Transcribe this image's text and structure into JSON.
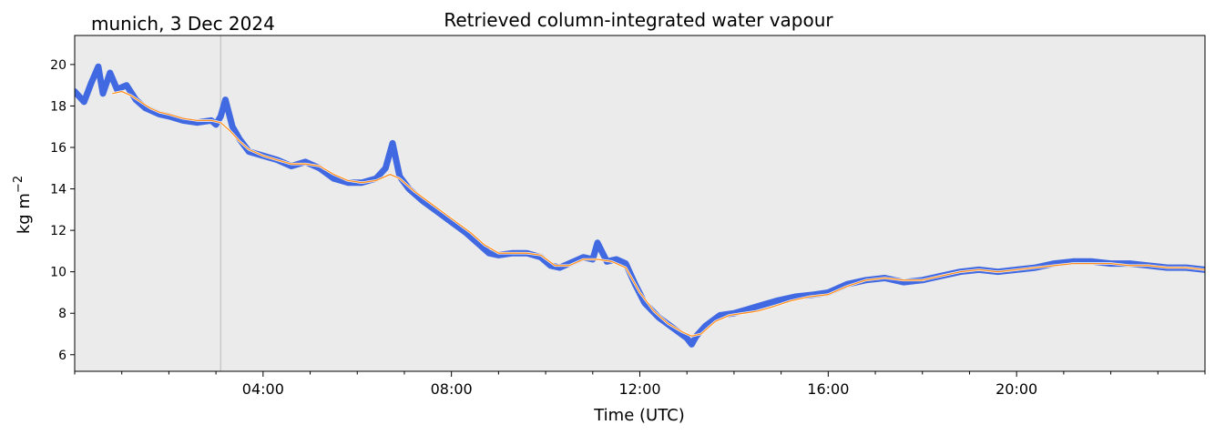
{
  "chart_data": {
    "type": "line",
    "title": "Retrieved column-integrated water vapour",
    "location_label": "munich, 3 Dec 2024",
    "xlabel": "Time (UTC)",
    "ylabel_base": "kg m",
    "ylabel_exponent": "−2",
    "x_unit": "hours UTC",
    "xlim": [
      0.0,
      24.0
    ],
    "ylim": [
      5.2,
      21.4
    ],
    "x_tick_values": [
      4,
      8,
      12,
      16,
      20
    ],
    "x_tick_labels": [
      "04:00",
      "08:00",
      "12:00",
      "16:00",
      "20:00"
    ],
    "y_tick_values": [
      6,
      8,
      10,
      12,
      14,
      16,
      18,
      20
    ],
    "y_tick_labels": [
      "6",
      "8",
      "10",
      "12",
      "14",
      "16",
      "18",
      "20"
    ],
    "grid": false,
    "legend": "none",
    "background_color": "#ebebeb",
    "vertical_marker_x": 3.1,
    "vertical_marker_color": "#c8c8c8",
    "series": [
      {
        "role": "raw",
        "color": "#4169e1",
        "x": [
          0.0,
          0.2,
          0.35,
          0.5,
          0.6,
          0.75,
          0.9,
          1.1,
          1.3,
          1.5,
          1.8,
          2.0,
          2.3,
          2.6,
          2.9,
          3.0,
          3.1,
          3.2,
          3.35,
          3.5,
          3.7,
          4.0,
          4.3,
          4.6,
          4.9,
          5.2,
          5.5,
          5.8,
          6.1,
          6.4,
          6.6,
          6.75,
          6.9,
          7.1,
          7.4,
          7.7,
          8.0,
          8.3,
          8.6,
          8.8,
          9.0,
          9.3,
          9.6,
          9.9,
          10.1,
          10.3,
          10.5,
          10.8,
          11.0,
          11.1,
          11.3,
          11.5,
          11.7,
          11.9,
          12.1,
          12.4,
          12.7,
          13.0,
          13.1,
          13.2,
          13.4,
          13.7,
          14.0,
          14.3,
          14.6,
          14.9,
          15.3,
          15.7,
          16.0,
          16.4,
          16.8,
          17.2,
          17.6,
          18.0,
          18.4,
          18.8,
          19.2,
          19.6,
          20.0,
          20.4,
          20.8,
          21.2,
          21.6,
          22.0,
          22.4,
          22.8,
          23.2,
          23.6,
          24.0
        ],
        "y": [
          18.7,
          18.2,
          19.1,
          19.9,
          18.6,
          19.6,
          18.8,
          19.0,
          18.3,
          17.9,
          17.6,
          17.5,
          17.3,
          17.2,
          17.3,
          17.1,
          17.5,
          18.3,
          17.0,
          16.4,
          15.8,
          15.6,
          15.4,
          15.1,
          15.3,
          15.0,
          14.5,
          14.3,
          14.3,
          14.5,
          15.0,
          16.2,
          14.6,
          14.0,
          13.4,
          12.9,
          12.4,
          11.9,
          11.3,
          10.9,
          10.8,
          10.9,
          10.9,
          10.7,
          10.3,
          10.2,
          10.4,
          10.7,
          10.6,
          11.4,
          10.5,
          10.6,
          10.4,
          9.4,
          8.5,
          7.8,
          7.3,
          6.8,
          6.5,
          6.9,
          7.4,
          7.9,
          8.0,
          8.2,
          8.4,
          8.6,
          8.8,
          8.9,
          9.0,
          9.4,
          9.6,
          9.7,
          9.5,
          9.6,
          9.8,
          10.0,
          10.1,
          10.0,
          10.1,
          10.2,
          10.4,
          10.5,
          10.5,
          10.4,
          10.4,
          10.3,
          10.2,
          10.2,
          10.1
        ]
      },
      {
        "role": "smoothed",
        "color": "#ff8c1a",
        "x": [
          0.8,
          1.0,
          1.2,
          1.4,
          1.6,
          1.8,
          2.0,
          2.3,
          2.6,
          2.9,
          3.1,
          3.3,
          3.5,
          3.7,
          4.0,
          4.3,
          4.6,
          4.9,
          5.2,
          5.5,
          5.8,
          6.1,
          6.4,
          6.7,
          6.9,
          7.2,
          7.5,
          7.8,
          8.1,
          8.4,
          8.7,
          9.0,
          9.3,
          9.6,
          9.9,
          10.2,
          10.5,
          10.8,
          11.1,
          11.4,
          11.7,
          12.0,
          12.3,
          12.6,
          12.9,
          13.1,
          13.3,
          13.6,
          13.9,
          14.2,
          14.5,
          14.8,
          15.2,
          15.6,
          16.0,
          16.4,
          16.8,
          17.2,
          17.6,
          18.0,
          18.4,
          18.8,
          19.2,
          19.6,
          20.0,
          20.4,
          20.8,
          21.2,
          21.6,
          22.0,
          22.4,
          22.8,
          23.2,
          23.6,
          24.0
        ],
        "y": [
          18.6,
          18.7,
          18.5,
          18.2,
          17.9,
          17.7,
          17.6,
          17.4,
          17.3,
          17.3,
          17.2,
          16.8,
          16.3,
          15.9,
          15.6,
          15.4,
          15.2,
          15.2,
          15.1,
          14.7,
          14.4,
          14.3,
          14.4,
          14.7,
          14.5,
          13.9,
          13.4,
          12.9,
          12.4,
          11.9,
          11.3,
          10.9,
          10.9,
          10.9,
          10.8,
          10.3,
          10.3,
          10.6,
          10.6,
          10.5,
          10.2,
          9.0,
          8.1,
          7.5,
          7.1,
          6.9,
          7.0,
          7.6,
          7.9,
          8.0,
          8.1,
          8.3,
          8.6,
          8.8,
          8.9,
          9.3,
          9.6,
          9.7,
          9.6,
          9.6,
          9.8,
          10.0,
          10.1,
          10.0,
          10.1,
          10.2,
          10.3,
          10.4,
          10.4,
          10.4,
          10.3,
          10.3,
          10.2,
          10.2,
          10.1
        ]
      }
    ]
  }
}
